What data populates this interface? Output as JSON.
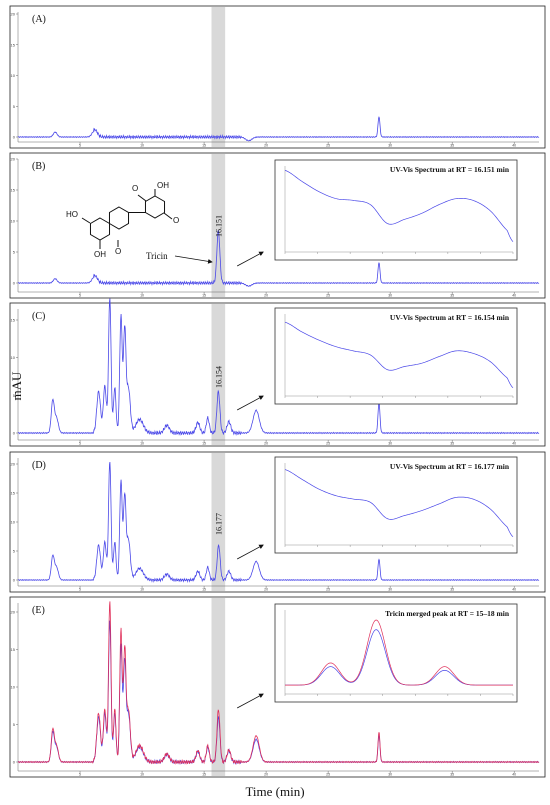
{
  "figure": {
    "y_axis_label": "mAU",
    "x_axis_label": "Time  (min)",
    "tricin_label": "Tricin",
    "structure_labels": [
      "O",
      "OH",
      "O",
      "HO",
      "OH",
      "O"
    ]
  },
  "colors": {
    "trace_blue": "#4a48e8",
    "trace_red": "#e0305a",
    "highlight_band": "#d9d9d9",
    "frame": "#222222"
  },
  "chart_data": [
    {
      "type": "line",
      "panel_label": "(A)",
      "x_unit": "min",
      "xlim": [
        0,
        42
      ],
      "ylim": [
        -1,
        20
      ],
      "y_ticks": [
        0,
        5,
        10,
        15,
        20
      ],
      "x_ticks": [
        5,
        10,
        15,
        20,
        25,
        30,
        35,
        40
      ],
      "series": [
        {
          "color": "#4a48e8",
          "peaks": [
            [
              3.0,
              0.8,
              0.15
            ],
            [
              6.2,
              1.2,
              0.2
            ],
            [
              18.6,
              -0.6,
              0.25
            ],
            [
              29.1,
              3.3,
              0.08
            ]
          ]
        }
      ],
      "highlight_band": [
        15.6,
        16.7
      ]
    },
    {
      "type": "line",
      "panel_label": "(B)",
      "x_unit": "min",
      "xlim": [
        0,
        42
      ],
      "ylim": [
        -1,
        20
      ],
      "y_ticks": [
        0,
        5,
        10,
        15,
        20
      ],
      "x_ticks": [
        5,
        10,
        15,
        20,
        25,
        30,
        35,
        40
      ],
      "peak_label": "16.151",
      "peak_rt": 16.151,
      "series": [
        {
          "color": "#4a48e8",
          "peaks": [
            [
              3.0,
              0.7,
              0.15
            ],
            [
              6.2,
              1.2,
              0.2
            ],
            [
              16.151,
              8.4,
              0.12
            ],
            [
              18.6,
              -0.5,
              0.25
            ],
            [
              29.1,
              3.3,
              0.08
            ]
          ]
        }
      ],
      "highlight_band": [
        15.6,
        16.7
      ],
      "inset": {
        "title": "UV-Vis Spectrum at RT = 16.151 min",
        "type": "line",
        "x": [
          200,
          215,
          230,
          245,
          260,
          275,
          290,
          305,
          320,
          335,
          350,
          365,
          380,
          395,
          400
        ],
        "y": [
          0.95,
          0.82,
          0.7,
          0.62,
          0.6,
          0.55,
          0.33,
          0.38,
          0.45,
          0.55,
          0.62,
          0.6,
          0.48,
          0.25,
          0.12
        ]
      }
    },
    {
      "type": "line",
      "panel_label": "(C)",
      "x_unit": "min",
      "xlim": [
        0,
        42
      ],
      "ylim": [
        -1,
        20
      ],
      "y_ticks": [
        0,
        5,
        10,
        15
      ],
      "x_ticks": [
        5,
        10,
        15,
        20,
        25,
        30,
        35,
        40
      ],
      "peak_label": "16.154",
      "peak_rt": 16.154,
      "series": [
        {
          "color": "#4a48e8",
          "peaks": [
            [
              2.8,
              4.2,
              0.12
            ],
            [
              3.1,
              2.0,
              0.15
            ],
            [
              6.5,
              5.5,
              0.15
            ],
            [
              7.0,
              6.2,
              0.12
            ],
            [
              7.4,
              18.0,
              0.1
            ],
            [
              7.8,
              6.0,
              0.1
            ],
            [
              8.3,
              15.5,
              0.1
            ],
            [
              8.6,
              13.5,
              0.1
            ],
            [
              8.9,
              6.0,
              0.15
            ],
            [
              9.8,
              1.8,
              0.3
            ],
            [
              12.0,
              1.0,
              0.2
            ],
            [
              14.5,
              1.4,
              0.15
            ],
            [
              15.3,
              2.0,
              0.12
            ],
            [
              16.154,
              5.5,
              0.12
            ],
            [
              17.0,
              1.5,
              0.15
            ],
            [
              19.2,
              3.0,
              0.25
            ],
            [
              29.1,
              4.0,
              0.08
            ]
          ]
        }
      ],
      "highlight_band": [
        15.6,
        16.7
      ],
      "inset": {
        "title": "UV-Vis Spectrum at RT = 16.154 min",
        "type": "line",
        "x": [
          200,
          215,
          230,
          245,
          260,
          275,
          290,
          305,
          320,
          335,
          350,
          365,
          380,
          395,
          400
        ],
        "y": [
          0.9,
          0.78,
          0.68,
          0.6,
          0.55,
          0.5,
          0.32,
          0.36,
          0.4,
          0.48,
          0.55,
          0.52,
          0.42,
          0.22,
          0.1
        ]
      }
    },
    {
      "type": "line",
      "panel_label": "(D)",
      "x_unit": "min",
      "xlim": [
        0,
        42
      ],
      "ylim": [
        -1,
        20
      ],
      "y_ticks": [
        0,
        5,
        10,
        15,
        20
      ],
      "x_ticks": [
        5,
        10,
        15,
        20,
        25,
        30,
        35,
        40
      ],
      "peak_label": "16.177",
      "peak_rt": 16.177,
      "series": [
        {
          "color": "#4a48e8",
          "peaks": [
            [
              2.8,
              4.0,
              0.12
            ],
            [
              3.1,
              2.2,
              0.15
            ],
            [
              6.5,
              6.0,
              0.15
            ],
            [
              7.0,
              6.5,
              0.12
            ],
            [
              7.4,
              20.5,
              0.1
            ],
            [
              7.8,
              6.5,
              0.1
            ],
            [
              8.3,
              17.0,
              0.1
            ],
            [
              8.6,
              14.0,
              0.1
            ],
            [
              8.9,
              7.0,
              0.15
            ],
            [
              9.8,
              2.0,
              0.3
            ],
            [
              12.0,
              1.0,
              0.2
            ],
            [
              14.5,
              1.5,
              0.15
            ],
            [
              15.3,
              2.2,
              0.12
            ],
            [
              16.177,
              6.0,
              0.12
            ],
            [
              17.0,
              1.5,
              0.15
            ],
            [
              19.2,
              3.2,
              0.25
            ],
            [
              29.1,
              3.6,
              0.08
            ]
          ]
        }
      ],
      "highlight_band": [
        15.6,
        16.7
      ],
      "inset": {
        "title": "UV-Vis Spectrum at RT = 16.177 min",
        "type": "line",
        "x": [
          200,
          215,
          230,
          245,
          260,
          275,
          290,
          305,
          320,
          335,
          350,
          365,
          380,
          395,
          400
        ],
        "y": [
          0.92,
          0.8,
          0.68,
          0.6,
          0.56,
          0.52,
          0.32,
          0.36,
          0.42,
          0.5,
          0.58,
          0.56,
          0.44,
          0.22,
          0.1
        ]
      }
    },
    {
      "type": "line",
      "panel_label": "(E)",
      "x_unit": "min",
      "xlim": [
        0,
        42
      ],
      "ylim": [
        -1,
        23
      ],
      "y_ticks": [
        0,
        5,
        10,
        15,
        20
      ],
      "x_ticks": [
        5,
        10,
        15,
        20,
        25,
        30,
        35,
        40
      ],
      "series": [
        {
          "color": "#4a48e8",
          "peaks": [
            [
              2.8,
              3.8,
              0.12
            ],
            [
              3.1,
              2.0,
              0.15
            ],
            [
              6.5,
              6.0,
              0.15
            ],
            [
              7.0,
              6.5,
              0.12
            ],
            [
              7.4,
              19.0,
              0.1
            ],
            [
              7.8,
              6.5,
              0.1
            ],
            [
              8.3,
              15.5,
              0.1
            ],
            [
              8.6,
              13.0,
              0.1
            ],
            [
              8.9,
              6.5,
              0.15
            ],
            [
              9.8,
              2.0,
              0.3
            ],
            [
              12.0,
              1.0,
              0.2
            ],
            [
              14.5,
              1.4,
              0.15
            ],
            [
              15.3,
              2.0,
              0.12
            ],
            [
              16.16,
              6.0,
              0.12
            ],
            [
              17.0,
              1.5,
              0.15
            ],
            [
              19.2,
              3.0,
              0.25
            ],
            [
              29.1,
              3.6,
              0.08
            ]
          ]
        },
        {
          "color": "#e0305a",
          "peaks": [
            [
              2.8,
              4.2,
              0.12
            ],
            [
              3.1,
              2.2,
              0.15
            ],
            [
              6.5,
              6.5,
              0.15
            ],
            [
              7.0,
              7.0,
              0.12
            ],
            [
              7.4,
              21.5,
              0.1
            ],
            [
              7.8,
              7.0,
              0.1
            ],
            [
              8.3,
              17.5,
              0.1
            ],
            [
              8.6,
              14.5,
              0.1
            ],
            [
              8.9,
              7.0,
              0.15
            ],
            [
              9.8,
              2.2,
              0.3
            ],
            [
              12.0,
              1.1,
              0.2
            ],
            [
              14.5,
              1.5,
              0.15
            ],
            [
              15.3,
              2.2,
              0.12
            ],
            [
              16.16,
              7.0,
              0.12
            ],
            [
              17.0,
              1.6,
              0.15
            ],
            [
              19.2,
              3.5,
              0.25
            ],
            [
              29.1,
              4.0,
              0.08
            ]
          ]
        }
      ],
      "highlight_band": [
        15.6,
        16.7
      ],
      "inset": {
        "title": "Tricin merged peak at RT = 15–18 min",
        "type": "line",
        "x": [
          15.0,
          15.3,
          15.6,
          15.9,
          16.2,
          16.5,
          16.8,
          17.1,
          17.4,
          17.7,
          18.0
        ],
        "series": [
          {
            "color": "#4a48e8",
            "peaks": [
              [
                15.6,
                0.25,
                0.12
              ],
              [
                16.2,
                0.75,
                0.12
              ],
              [
                17.1,
                0.2,
                0.12
              ]
            ]
          },
          {
            "color": "#e0305a",
            "peaks": [
              [
                15.6,
                0.3,
                0.12
              ],
              [
                16.2,
                0.88,
                0.12
              ],
              [
                17.1,
                0.25,
                0.12
              ]
            ]
          }
        ]
      }
    }
  ]
}
